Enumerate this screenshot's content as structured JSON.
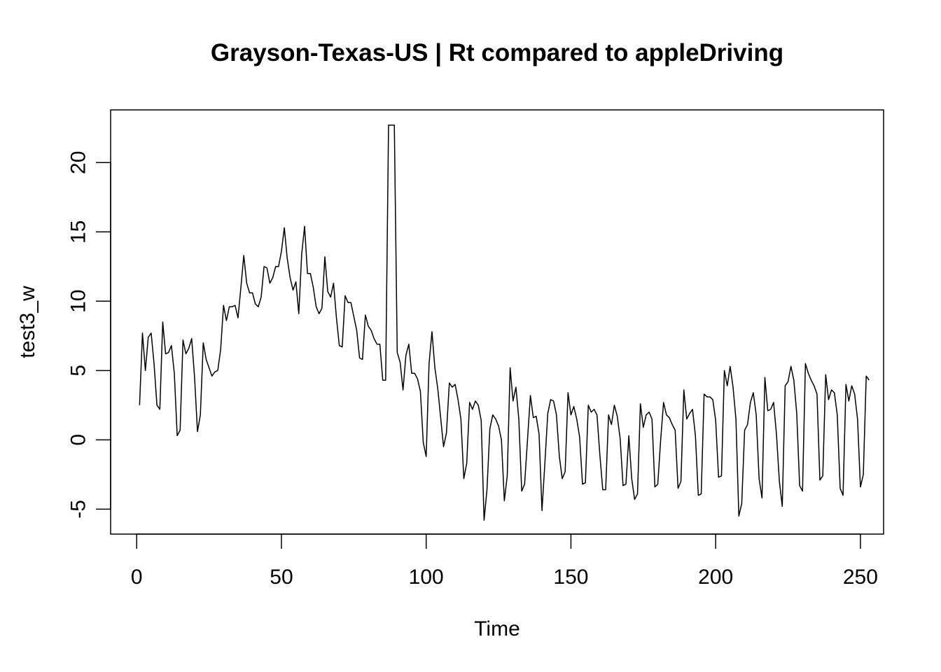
{
  "chart_data": {
    "type": "line",
    "title": "Grayson-Texas-US | Rt compared to appleDriving",
    "xlabel": "Time",
    "ylabel": "test3_w",
    "xlim": [
      -9,
      258
    ],
    "ylim": [
      -6.8,
      23.8
    ],
    "x_ticks": [
      0,
      50,
      100,
      150,
      200,
      250
    ],
    "x_tick_labels": [
      "0",
      "50",
      "100",
      "150",
      "200",
      "250"
    ],
    "y_ticks": [
      -5,
      0,
      5,
      10,
      15,
      20
    ],
    "y_tick_labels": [
      "-5",
      "0",
      "5",
      "10",
      "15",
      "20"
    ],
    "grid": false,
    "series": [
      {
        "x_start": 1,
        "values": [
          2.5,
          7.7,
          5.0,
          7.4,
          7.7,
          5.5,
          2.5,
          2.2,
          8.5,
          6.2,
          6.3,
          6.8,
          4.8,
          0.3,
          0.7,
          7.2,
          6.2,
          6.6,
          7.3,
          4.5,
          0.6,
          1.8,
          7.0,
          5.8,
          5.2,
          4.6,
          4.9,
          5.0,
          6.5,
          9.7,
          8.6,
          9.6,
          9.6,
          9.7,
          8.8,
          11.0,
          13.3,
          11.3,
          10.6,
          10.6,
          9.8,
          9.6,
          10.3,
          12.5,
          12.4,
          11.3,
          11.7,
          12.5,
          12.5,
          13.6,
          15.3,
          13.1,
          11.7,
          10.8,
          11.4,
          9.1,
          13.4,
          15.4,
          12.0,
          12.0,
          11.0,
          9.6,
          9.1,
          9.5,
          13.2,
          10.7,
          10.3,
          11.3,
          8.8,
          6.8,
          6.7,
          10.4,
          9.9,
          9.9,
          8.9,
          7.9,
          5.9,
          5.8,
          9.0,
          8.2,
          7.9,
          7.3,
          6.9,
          6.9,
          4.3,
          4.3,
          22.7,
          22.7,
          22.7,
          6.3,
          5.6,
          3.6,
          6.1,
          6.9,
          4.8,
          4.8,
          4.4,
          3.5,
          -0.2,
          -1.2,
          5.5,
          7.8,
          5.2,
          3.7,
          1.6,
          -0.5,
          0.5,
          4.1,
          3.8,
          4.0,
          2.9,
          1.5,
          -2.8,
          -1.7,
          2.7,
          2.2,
          2.8,
          2.5,
          1.4,
          -5.8,
          -3.6,
          0.8,
          1.8,
          1.5,
          1.0,
          0.0,
          -4.4,
          -2.6,
          5.2,
          2.8,
          3.8,
          1.5,
          -3.7,
          -3.2,
          0.0,
          3.2,
          1.6,
          1.7,
          0.4,
          -5.1,
          -1.7,
          1.9,
          2.9,
          2.8,
          1.8,
          -1.2,
          -2.8,
          -2.3,
          3.4,
          1.8,
          2.4,
          1.5,
          0.2,
          -3.2,
          -3.1,
          2.5,
          2.0,
          2.2,
          1.8,
          -1.1,
          -3.6,
          -3.6,
          1.8,
          1.1,
          2.5,
          1.7,
          0.1,
          -3.3,
          -3.2,
          0.3,
          -2.8,
          -4.3,
          -3.9,
          2.6,
          0.9,
          1.8,
          2.0,
          1.5,
          -3.4,
          -3.2,
          0.0,
          2.7,
          1.8,
          1.6,
          1.1,
          0.7,
          -3.5,
          -3.0,
          3.6,
          1.5,
          1.9,
          2.2,
          0.3,
          -4.0,
          -3.9,
          3.3,
          3.1,
          3.1,
          2.9,
          1.4,
          -2.7,
          -2.6,
          5.0,
          3.9,
          5.3,
          3.8,
          1.5,
          -5.5,
          -4.6,
          0.7,
          1.1,
          2.7,
          3.4,
          1.8,
          -2.8,
          -4.2,
          4.5,
          2.1,
          2.2,
          2.7,
          0.4,
          -3.0,
          -4.8,
          3.9,
          4.2,
          5.3,
          4.3,
          1.9,
          -3.3,
          -3.7,
          5.5,
          4.8,
          4.3,
          3.9,
          3.3,
          -2.9,
          -2.6,
          4.7,
          2.9,
          3.6,
          3.4,
          1.8,
          -3.5,
          -4.0,
          4.0,
          2.8,
          3.9,
          3.3,
          1.5,
          -3.4,
          -2.5,
          4.6,
          4.3
        ]
      }
    ]
  }
}
